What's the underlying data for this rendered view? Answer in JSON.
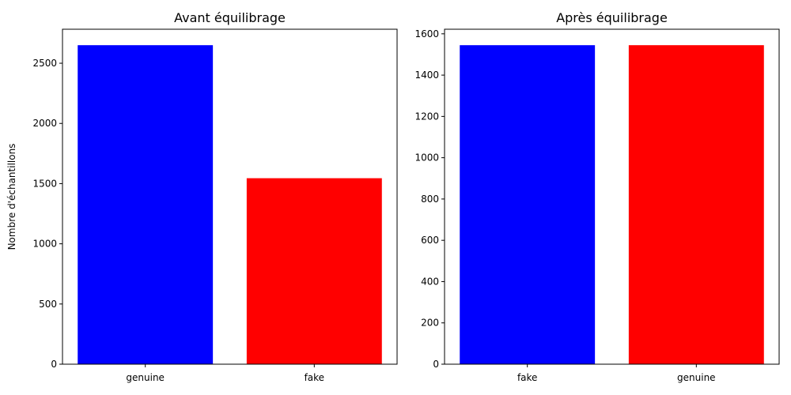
{
  "chart_data": [
    {
      "type": "bar",
      "title": "Avant équilibrage",
      "xlabel": "",
      "ylabel": "Nombre d'échantillons",
      "categories": [
        "genuine",
        "fake"
      ],
      "values": [
        2650,
        1545
      ],
      "colors": [
        "#0000ff",
        "#ff0000"
      ],
      "ylim": [
        0,
        2782.5
      ],
      "yticks": [
        0,
        500,
        1000,
        1500,
        2000,
        2500
      ],
      "grid": false
    },
    {
      "type": "bar",
      "title": "Après équilibrage",
      "xlabel": "",
      "ylabel": "",
      "categories": [
        "fake",
        "genuine"
      ],
      "values": [
        1545,
        1545
      ],
      "colors": [
        "#0000ff",
        "#ff0000"
      ],
      "ylim": [
        0,
        1622.25
      ],
      "yticks": [
        0,
        200,
        400,
        600,
        800,
        1000,
        1200,
        1400,
        1600
      ],
      "grid": false
    }
  ]
}
